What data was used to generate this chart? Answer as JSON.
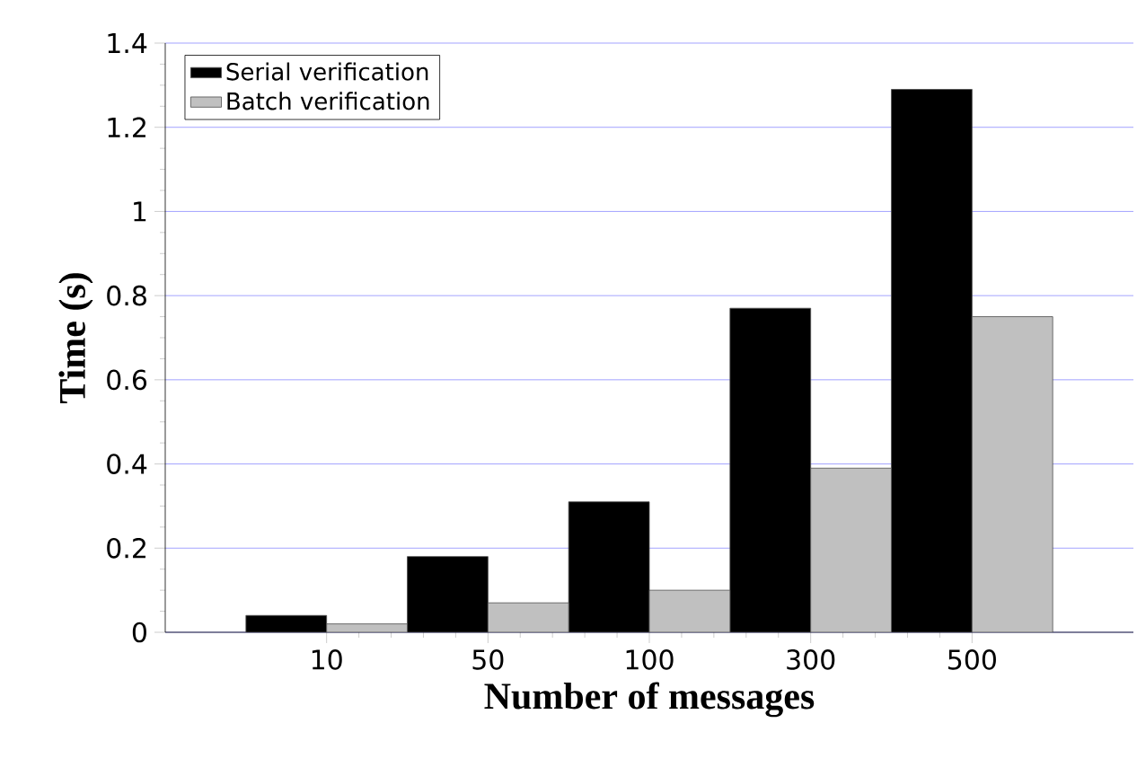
{
  "chart_data": {
    "type": "bar",
    "xlabel": "Number of messages",
    "ylabel": "Time (s)",
    "categories": [
      "10",
      "50",
      "100",
      "300",
      "500"
    ],
    "series": [
      {
        "name": "Serial verification",
        "color": "#000000",
        "values": [
          0.04,
          0.18,
          0.31,
          0.77,
          1.29
        ]
      },
      {
        "name": "Batch verification",
        "color": "#c0c0c0",
        "values": [
          0.02,
          0.07,
          0.1,
          0.39,
          0.75
        ]
      }
    ],
    "ylim": [
      0,
      1.4
    ],
    "yticks": [
      0,
      0.2,
      0.4,
      0.6,
      0.8,
      1,
      1.2,
      1.4
    ],
    "grid": "y",
    "legend": "top left"
  }
}
